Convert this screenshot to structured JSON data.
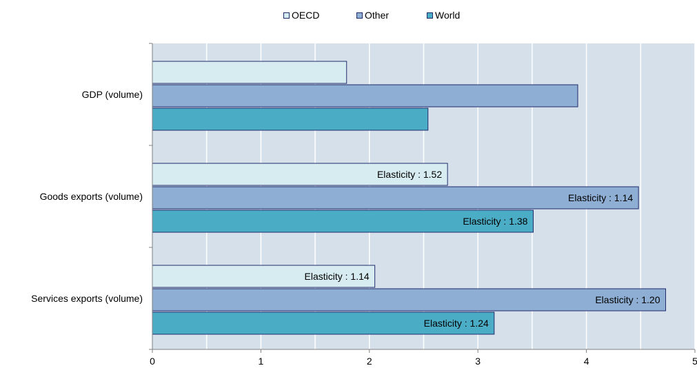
{
  "chart_data": {
    "type": "bar",
    "orientation": "horizontal",
    "categories": [
      "GDP (volume)",
      "Goods exports (volume)",
      "Services exports (volume)"
    ],
    "series": [
      {
        "name": "OECD",
        "color": "#d6ecf0",
        "values": [
          1.79,
          2.72,
          2.05
        ],
        "data_labels": [
          "",
          "Elasticity : 1.52",
          "Elasticity : 1.14"
        ]
      },
      {
        "name": "Other",
        "color": "#8eaed4",
        "values": [
          3.92,
          4.48,
          4.73
        ],
        "data_labels": [
          "",
          "Elasticity : 1.14",
          "Elasticity : 1.20"
        ]
      },
      {
        "name": "World",
        "color": "#4bacc6",
        "values": [
          2.54,
          3.51,
          3.15
        ],
        "data_labels": [
          "",
          "Elasticity : 1.38",
          "Elasticity : 1.24"
        ]
      }
    ],
    "xlim": [
      0,
      5
    ],
    "xticks": [
      "0",
      "1",
      "2",
      "3",
      "4",
      "5"
    ],
    "grid": true,
    "legend_position": "top-center",
    "plot_background": "#d6e0ea",
    "bar_border": "#1f2a6b"
  }
}
